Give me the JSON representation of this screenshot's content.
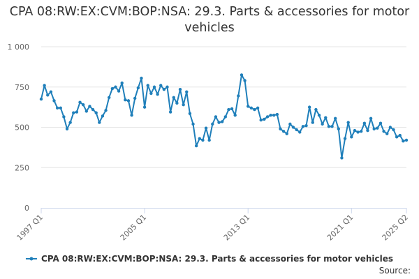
{
  "chart_data": {
    "type": "line",
    "title": "CPA 08:RW:EX:CVM:BOP:NSA: 29.3. Parts & accessories for motor vehicles",
    "xlabel": "",
    "ylabel": "",
    "x_tick_labels": [
      "1997 Q1",
      "2005 Q1",
      "2013 Q1",
      "2021 Q1",
      "2025 Q2"
    ],
    "y_tick_labels": [
      "0",
      "250",
      "500",
      "750",
      "1 000"
    ],
    "ylim": [
      0,
      1000
    ],
    "grid": true,
    "legend_position": "bottom",
    "source_label": "Source:",
    "series": [
      {
        "name": "CPA 08:RW:EX:CVM:BOP:NSA: 29.3. Parts & accessories for motor vehicles",
        "color": "#1f7fba",
        "x": [
          "1997 Q1",
          "1997 Q2",
          "1997 Q3",
          "1997 Q4",
          "1998 Q1",
          "1998 Q2",
          "1998 Q3",
          "1998 Q4",
          "1999 Q1",
          "1999 Q2",
          "1999 Q3",
          "1999 Q4",
          "2000 Q1",
          "2000 Q2",
          "2000 Q3",
          "2000 Q4",
          "2001 Q1",
          "2001 Q2",
          "2001 Q3",
          "2001 Q4",
          "2002 Q1",
          "2002 Q2",
          "2002 Q3",
          "2002 Q4",
          "2003 Q1",
          "2003 Q2",
          "2003 Q3",
          "2003 Q4",
          "2004 Q1",
          "2004 Q2",
          "2004 Q3",
          "2004 Q4",
          "2005 Q1",
          "2005 Q2",
          "2005 Q3",
          "2005 Q4",
          "2006 Q1",
          "2006 Q2",
          "2006 Q3",
          "2006 Q4",
          "2007 Q1",
          "2007 Q2",
          "2007 Q3",
          "2007 Q4",
          "2008 Q1",
          "2008 Q2",
          "2008 Q3",
          "2008 Q4",
          "2009 Q1",
          "2009 Q2",
          "2009 Q3",
          "2009 Q4",
          "2010 Q1",
          "2010 Q2",
          "2010 Q3",
          "2010 Q4",
          "2011 Q1",
          "2011 Q2",
          "2011 Q3",
          "2011 Q4",
          "2012 Q1",
          "2012 Q2",
          "2012 Q3",
          "2012 Q4",
          "2013 Q1",
          "2013 Q2",
          "2013 Q3",
          "2013 Q4",
          "2014 Q1",
          "2014 Q2",
          "2014 Q3",
          "2014 Q4",
          "2015 Q1",
          "2015 Q2",
          "2015 Q3",
          "2015 Q4",
          "2016 Q1",
          "2016 Q2",
          "2016 Q3",
          "2016 Q4",
          "2017 Q1",
          "2017 Q2",
          "2017 Q3",
          "2017 Q4",
          "2018 Q1",
          "2018 Q2",
          "2018 Q3",
          "2018 Q4",
          "2019 Q1",
          "2019 Q2",
          "2019 Q3",
          "2019 Q4",
          "2020 Q1",
          "2020 Q2",
          "2020 Q3",
          "2020 Q4",
          "2021 Q1",
          "2021 Q2",
          "2021 Q3",
          "2021 Q4",
          "2022 Q1",
          "2022 Q2",
          "2022 Q3",
          "2022 Q4",
          "2023 Q1",
          "2023 Q2",
          "2023 Q3",
          "2023 Q4",
          "2024 Q1",
          "2024 Q2",
          "2024 Q3",
          "2024 Q4",
          "2025 Q1",
          "2025 Q2"
        ],
        "values": [
          675,
          760,
          700,
          720,
          665,
          620,
          620,
          565,
          490,
          530,
          590,
          595,
          655,
          640,
          600,
          630,
          610,
          590,
          530,
          570,
          605,
          685,
          740,
          750,
          725,
          775,
          670,
          665,
          575,
          680,
          745,
          805,
          625,
          760,
          710,
          750,
          705,
          760,
          735,
          750,
          595,
          685,
          650,
          735,
          640,
          720,
          585,
          520,
          385,
          430,
          420,
          495,
          420,
          520,
          565,
          530,
          535,
          565,
          610,
          615,
          575,
          695,
          825,
          790,
          630,
          620,
          610,
          620,
          545,
          550,
          565,
          575,
          575,
          580,
          490,
          475,
          460,
          520,
          500,
          485,
          470,
          505,
          510,
          625,
          530,
          610,
          575,
          520,
          560,
          505,
          505,
          555,
          490,
          310,
          430,
          530,
          440,
          480,
          470,
          475,
          525,
          480,
          555,
          490,
          495,
          525,
          475,
          460,
          500,
          485,
          440,
          450,
          415,
          420
        ]
      }
    ]
  }
}
